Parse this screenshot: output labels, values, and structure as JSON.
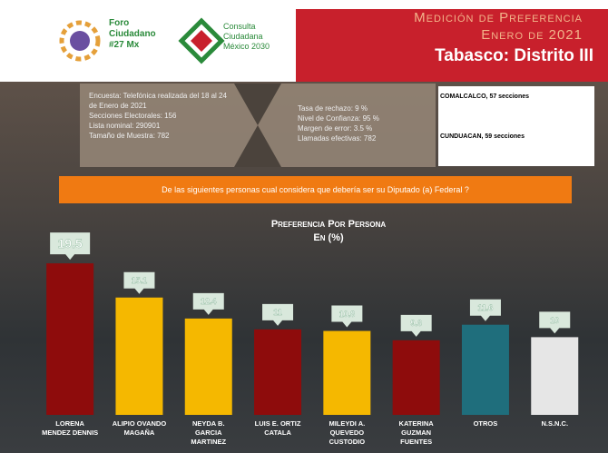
{
  "header": {
    "logo1": "Foro Ciudadano #27 Mx",
    "logo2": "Consulta Ciudadana México 2030",
    "title1": "Medición de Preferencia",
    "title2": "Enero de 2021",
    "title3": "Tabasco: Distrito III"
  },
  "info": {
    "left": [
      "Encuesta: Telefónica realizada del 18 al 24 de Enero de 2021",
      "Secciones Electorales: 156",
      "Lista nominal: 290901",
      "Tamaño de Muestra: 782"
    ],
    "right": [
      "Tasa de rechazo: 9 %",
      "Nivel de Confianza: 95 %",
      "Margen de error: 3.5 %",
      "Llamadas efectivas: 782"
    ],
    "sections": [
      "COMALCALCO, 57 secciones",
      "CUNDUACAN, 59 secciones"
    ]
  },
  "question": "De las siguientes personas cual considera que debería ser su Diputado (a) Federal ?",
  "chart_data": {
    "type": "bar",
    "title": "Preferencia Por Persona",
    "subtitle": "En (%)",
    "categories": [
      "LORENA MENDEZ DENNIS",
      "ALIPIO OVANDO MAGAÑA",
      "NEYDA B. GARCIA MARTINEZ",
      "LUIS E. ORTIZ CATALA",
      "MILEYDI A. QUEVEDO CUSTODIO",
      "KATERINA GUZMAN FUENTES",
      "OTROS",
      "N.S.N.C."
    ],
    "values": [
      19.5,
      15.1,
      12.4,
      11,
      10.8,
      9.6,
      11.6,
      10
    ],
    "colors": [
      "#8e0c0c",
      "#f5b800",
      "#f5b800",
      "#8e0c0c",
      "#f5b800",
      "#8e0c0c",
      "#1f6e7c",
      "#e6e6e6"
    ]
  }
}
